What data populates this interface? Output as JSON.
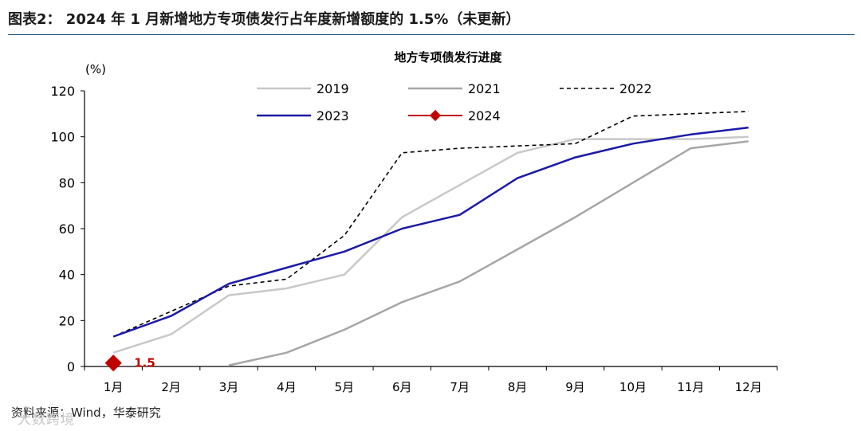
{
  "figure_title": "图表2： 2024 年 1 月新增地方专项债发行占年度新增额度的 1.5%（未更新）",
  "source_text": "资料来源：Wind，华泰研究",
  "watermark": "大数跨境",
  "chart_data": {
    "type": "line",
    "title": "地方专项债发行进度",
    "ylabel": "(%)",
    "xlabel": "",
    "ylim": [
      0,
      120
    ],
    "yticks": [
      0,
      20,
      40,
      60,
      80,
      100,
      120
    ],
    "categories": [
      "1月",
      "2月",
      "3月",
      "4月",
      "5月",
      "6月",
      "7月",
      "8月",
      "9月",
      "10月",
      "11月",
      "12月"
    ],
    "grid": false,
    "legend": "top",
    "series": [
      {
        "name": "2019",
        "color": "#c8c8c8",
        "style": "solid",
        "values": [
          6,
          14,
          31,
          34,
          40,
          65,
          79,
          93,
          99,
          99,
          99,
          100
        ]
      },
      {
        "name": "2021",
        "color": "#a6a6a6",
        "style": "solid",
        "values": [
          null,
          null,
          0.5,
          6,
          16,
          28,
          37,
          51,
          65,
          80,
          95,
          98
        ]
      },
      {
        "name": "2022",
        "color": "#000000",
        "style": "dashed",
        "values": [
          13,
          24,
          35,
          38,
          57,
          93,
          95,
          96,
          97,
          109,
          110,
          111
        ]
      },
      {
        "name": "2023",
        "color": "#1a1aa6",
        "style": "solid",
        "values": [
          13,
          22,
          36,
          43,
          50,
          60,
          66,
          82,
          91,
          97,
          101,
          104
        ]
      },
      {
        "name": "2024",
        "color": "#c00000",
        "style": "marker",
        "values": [
          1.5,
          null,
          null,
          null,
          null,
          null,
          null,
          null,
          null,
          null,
          null,
          null
        ]
      }
    ],
    "annotations": [
      {
        "series": "2024",
        "category": "1月",
        "text": "1.5"
      }
    ]
  }
}
